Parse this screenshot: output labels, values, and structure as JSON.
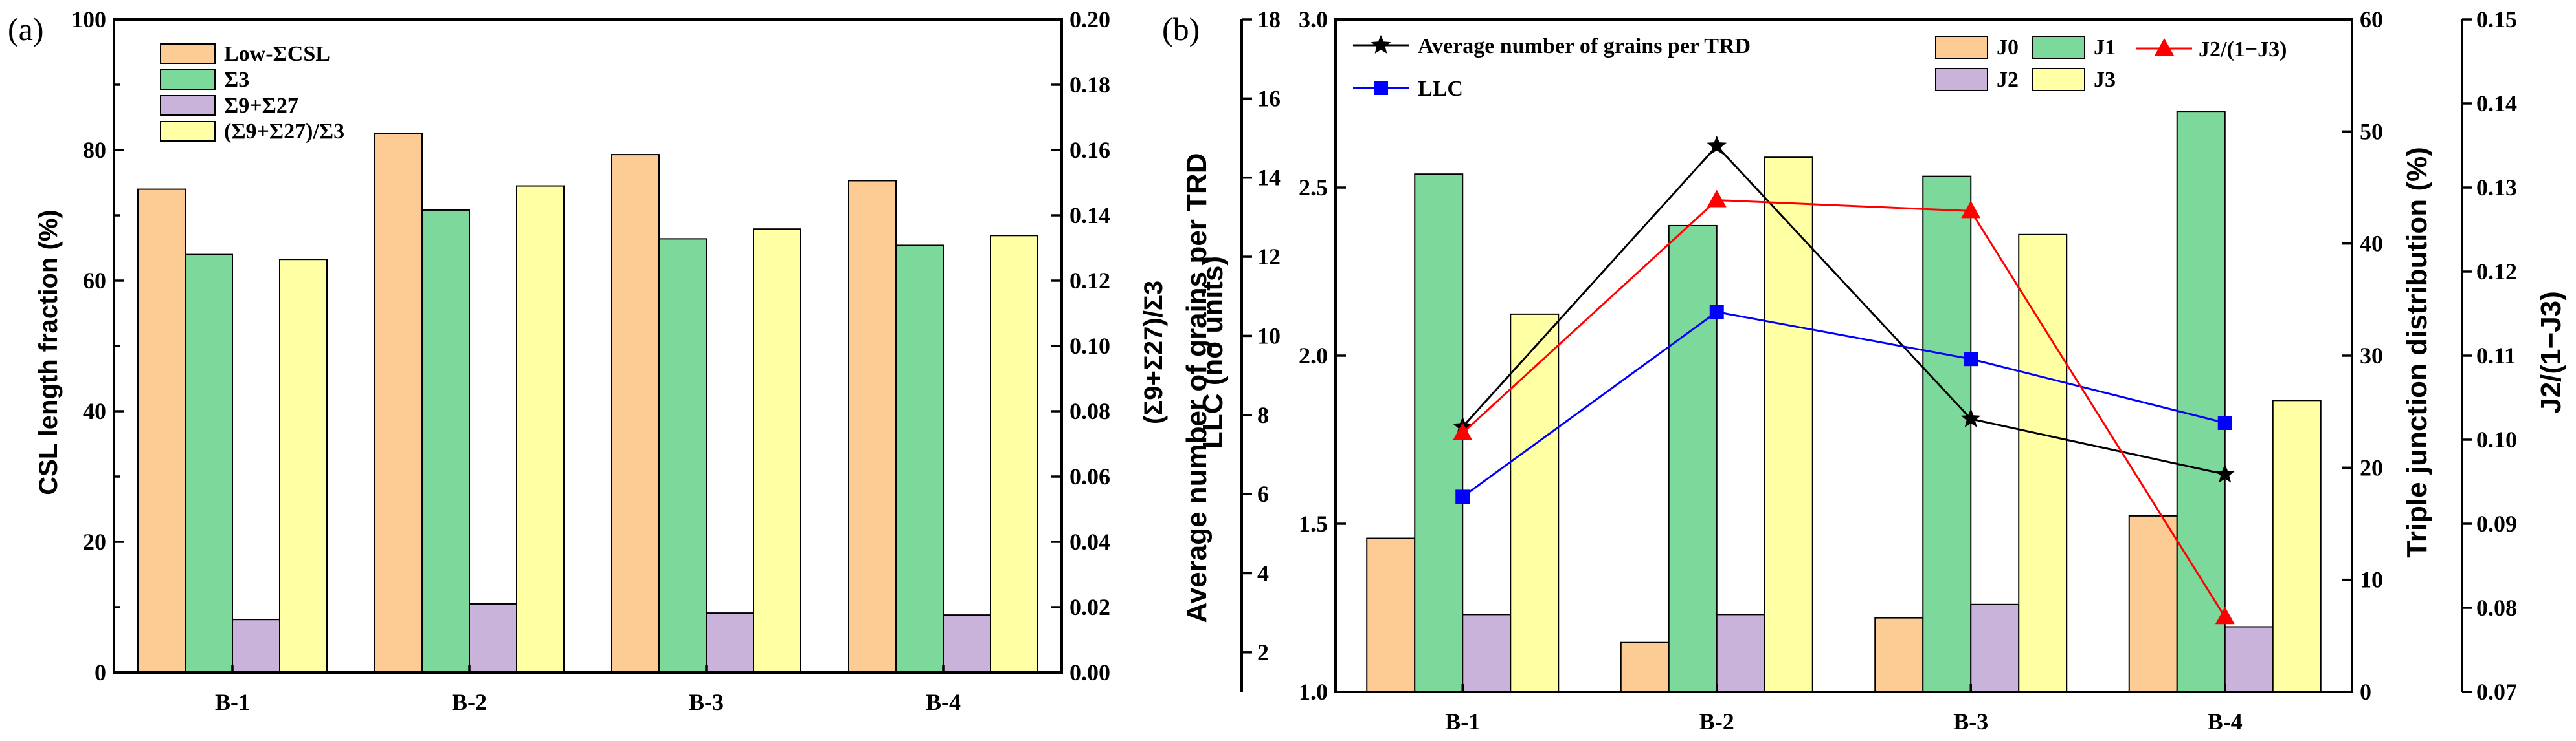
{
  "chart_data": [
    {
      "panel_label": "(a)",
      "type": "bar",
      "categories": [
        "B-1",
        "B-2",
        "B-3",
        "B-4"
      ],
      "ylabel_left": "CSL length fraction (%)",
      "ylabel_right": "(Σ9+Σ27)/Σ3",
      "ylim_left": [
        0,
        100
      ],
      "yticks_left": [
        "0",
        "20",
        "40",
        "60",
        "80",
        "100"
      ],
      "ylim_right": [
        0,
        0.2
      ],
      "yticks_right": [
        "0.00",
        "0.02",
        "0.04",
        "0.06",
        "0.08",
        "0.10",
        "0.12",
        "0.14",
        "0.16",
        "0.18",
        "0.20"
      ],
      "legend_position": "top-left",
      "series": [
        {
          "name": "Low-ΣCSL",
          "color": "#FDCB94",
          "axis": "left",
          "values": [
            74.0,
            82.5,
            79.3,
            75.3
          ]
        },
        {
          "name": "Σ3",
          "color": "#7DD89B",
          "axis": "left",
          "values": [
            64.0,
            70.8,
            66.4,
            65.4
          ]
        },
        {
          "name": "Σ9+Σ27",
          "color": "#C9B3DA",
          "axis": "left",
          "values": [
            8.1,
            10.5,
            9.1,
            8.8
          ]
        },
        {
          "name": "(Σ9+Σ27)/Σ3",
          "color": "#FFFFA3",
          "axis": "right",
          "values": [
            0.1265,
            0.149,
            0.1358,
            0.1338
          ]
        }
      ]
    },
    {
      "panel_label": "(b)",
      "type": "bar+line",
      "categories": [
        "B-1",
        "B-2",
        "B-3",
        "B-4"
      ],
      "ylabel_llc": "LLC (no units)",
      "ylabel_grains": "Average number of grains per TRD",
      "ylabel_tj": "Triple junction distribution (%)",
      "ylabel_ratio": "J2/(1−J3)",
      "ylim_llc": [
        1.0,
        3.0
      ],
      "yticks_llc": [
        "1.0",
        "1.5",
        "2.0",
        "2.5",
        "3.0"
      ],
      "ylim_grains": [
        1,
        18
      ],
      "yticks_grains": [
        "2",
        "4",
        "6",
        "8",
        "10",
        "12",
        "14",
        "16",
        "18"
      ],
      "ylim_tj": [
        0,
        60
      ],
      "yticks_tj": [
        "0",
        "10",
        "20",
        "30",
        "40",
        "50",
        "60"
      ],
      "ylim_ratio": [
        0.07,
        0.15
      ],
      "yticks_ratio": [
        "0.07",
        "0.08",
        "0.09",
        "0.10",
        "0.11",
        "0.12",
        "0.13",
        "0.14",
        "0.15"
      ],
      "bar_series": [
        {
          "name": "J0",
          "color": "#FDCB94",
          "values": [
            13.7,
            4.4,
            6.6,
            15.7
          ]
        },
        {
          "name": "J1",
          "color": "#7DD89B",
          "values": [
            46.2,
            41.6,
            46.0,
            51.8
          ]
        },
        {
          "name": "J2",
          "color": "#C9B3DA",
          "values": [
            6.9,
            6.9,
            7.8,
            5.8
          ]
        },
        {
          "name": "J3",
          "color": "#FFFFA3",
          "values": [
            33.7,
            47.7,
            40.8,
            26.0
          ]
        }
      ],
      "line_series": [
        {
          "name": "Average number of grains per TRD",
          "color": "#000000",
          "marker": "star",
          "axis": "grains",
          "values": [
            7.7,
            14.8,
            7.9,
            6.5
          ]
        },
        {
          "name": "LLC",
          "color": "#0000FF",
          "marker": "square",
          "axis": "llc",
          "values": [
            1.58,
            2.13,
            1.99,
            1.8
          ]
        },
        {
          "name": "J2/(1−J3)",
          "color": "#FF0000",
          "marker": "triangle",
          "axis": "ratio",
          "values": [
            0.1008,
            0.1285,
            0.1272,
            0.0789
          ]
        }
      ]
    }
  ]
}
